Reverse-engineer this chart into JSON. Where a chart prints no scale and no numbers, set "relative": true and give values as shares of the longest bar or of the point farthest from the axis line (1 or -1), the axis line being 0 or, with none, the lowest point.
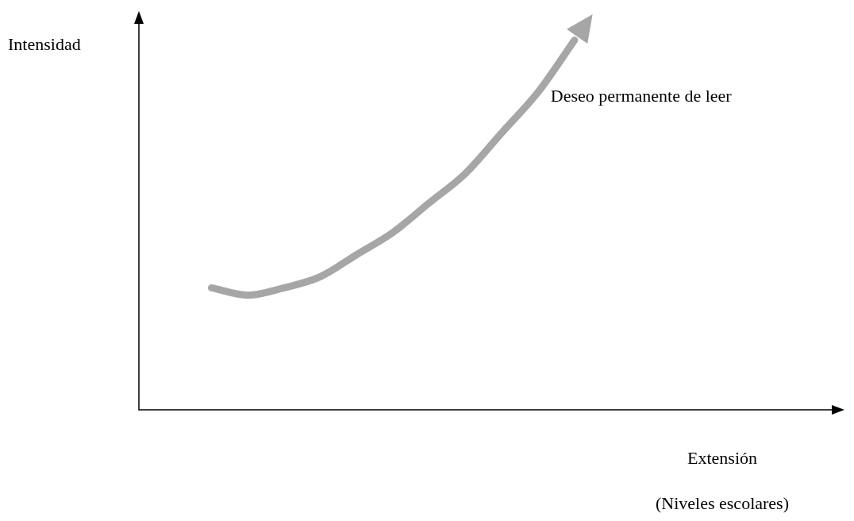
{
  "chart_data": {
    "type": "line",
    "relative": true,
    "xlabel": "Extensión\n(Niveles escolares)",
    "ylabel": "Intensidad",
    "categories": [
      null,
      null,
      null,
      null,
      null,
      null,
      null,
      null,
      null,
      null,
      null,
      null,
      null,
      null,
      null,
      null,
      null,
      null,
      null,
      null
    ],
    "series": [
      {
        "name": "Deseo permanente de leer",
        "color": "#a6a6a6",
        "values": [
          null,
          null,
          0.33,
          0.31,
          0.33,
          0.36,
          0.42,
          0.48,
          0.56,
          0.64,
          0.75,
          0.86,
          1,
          null,
          null,
          null,
          null,
          null,
          null,
          null
        ]
      }
    ],
    "legend": false
  }
}
